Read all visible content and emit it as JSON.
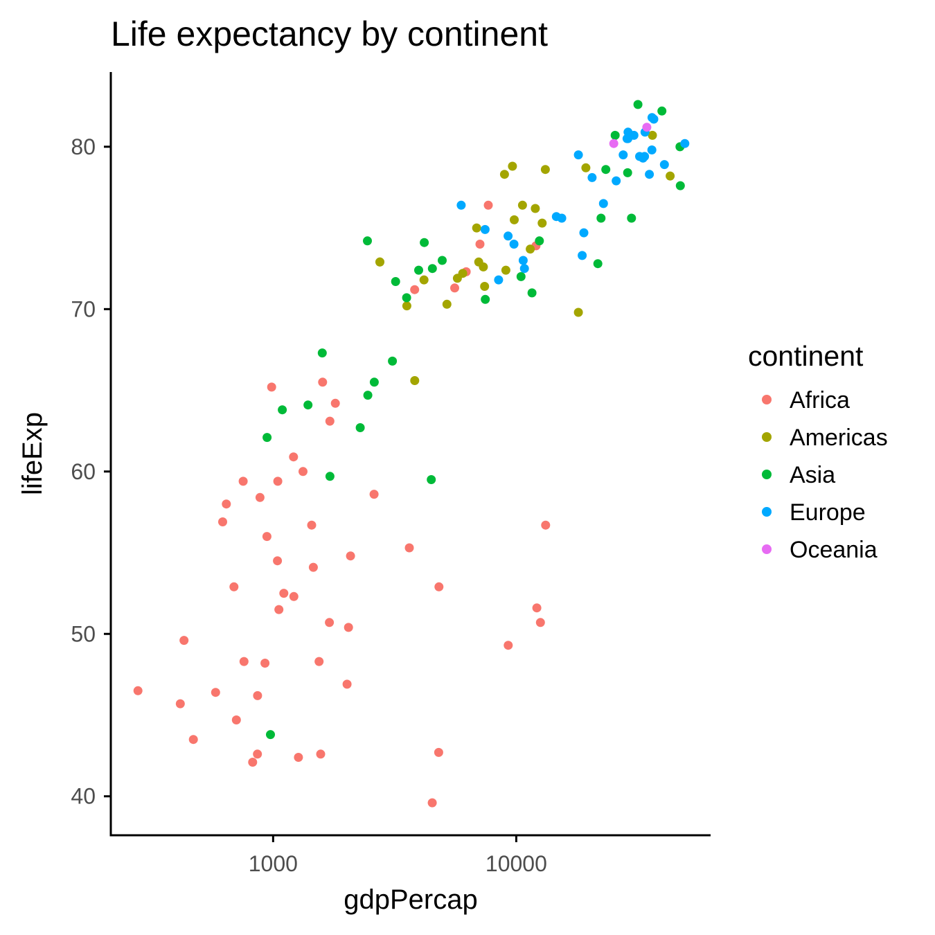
{
  "chart_data": {
    "type": "scatter",
    "title": "Life expectancy by continent",
    "xlabel": "gdpPercap",
    "ylabel": "lifeExp",
    "x_scale": "log10",
    "xlim": [
      215,
      63000
    ],
    "ylim": [
      37.6,
      84.6
    ],
    "x_ticks": [
      1000,
      10000
    ],
    "x_tick_labels": [
      "1000",
      "10000"
    ],
    "y_ticks": [
      40,
      50,
      60,
      70,
      80
    ],
    "y_tick_labels": [
      "40",
      "50",
      "60",
      "70",
      "80"
    ],
    "grid": false,
    "legend": {
      "title": "continent",
      "placement": "right"
    },
    "series": [
      {
        "name": "Africa",
        "color": "#F8766D",
        "points": [
          [
            6223,
            72.3
          ],
          [
            4797,
            42.7
          ],
          [
            1441,
            56.7
          ],
          [
            12570,
            50.7
          ],
          [
            1217,
            52.3
          ],
          [
            430,
            49.6
          ],
          [
            2042,
            50.4
          ],
          [
            706,
            44.7
          ],
          [
            1704,
            50.7
          ],
          [
            986,
            65.2
          ],
          [
            278,
            46.5
          ],
          [
            3633,
            55.3
          ],
          [
            1545,
            48.3
          ],
          [
            2082,
            54.8
          ],
          [
            5581,
            71.3
          ],
          [
            12154,
            51.6
          ],
          [
            642,
            58.0
          ],
          [
            690,
            52.9
          ],
          [
            13206,
            56.7
          ],
          [
            753,
            59.4
          ],
          [
            1327,
            60.0
          ],
          [
            943,
            56.0
          ],
          [
            580,
            46.4
          ],
          [
            1463,
            54.1
          ],
          [
            1569,
            42.6
          ],
          [
            415,
            45.7
          ],
          [
            12057,
            73.9
          ],
          [
            1045,
            59.4
          ],
          [
            759,
            48.3
          ],
          [
            1042,
            54.5
          ],
          [
            1803,
            64.2
          ],
          [
            7093,
            74.0
          ],
          [
            3820,
            71.2
          ],
          [
            824,
            42.1
          ],
          [
            4811,
            52.9
          ],
          [
            620,
            56.9
          ],
          [
            2014,
            46.9
          ],
          [
            7671,
            76.4
          ],
          [
            863,
            46.2
          ],
          [
            1598,
            65.5
          ],
          [
            1712,
            63.1
          ],
          [
            862,
            42.6
          ],
          [
            926,
            48.2
          ],
          [
            9270,
            49.3
          ],
          [
            2602,
            58.6
          ],
          [
            4513,
            39.6
          ],
          [
            1107,
            52.5
          ],
          [
            883,
            58.4
          ],
          [
            1056,
            51.5
          ],
          [
            1271,
            42.4
          ],
          [
            470,
            43.5
          ],
          [
            1213,
            60.9
          ]
        ]
      },
      {
        "name": "Americas",
        "color": "#A3A500",
        "points": [
          [
            12779,
            75.3
          ],
          [
            3822,
            65.6
          ],
          [
            9066,
            72.4
          ],
          [
            36319,
            80.7
          ],
          [
            13172,
            78.6
          ],
          [
            7007,
            72.9
          ],
          [
            9645,
            78.8
          ],
          [
            8948,
            78.3
          ],
          [
            6025,
            72.2
          ],
          [
            6873,
            75.0
          ],
          [
            5728,
            71.9
          ],
          [
            5186,
            70.3
          ],
          [
            2749,
            72.9
          ],
          [
            3548,
            70.2
          ],
          [
            7321,
            72.6
          ],
          [
            11978,
            76.2
          ],
          [
            2749,
            72.9
          ],
          [
            9809,
            75.5
          ],
          [
            4173,
            71.8
          ],
          [
            7409,
            71.4
          ],
          [
            19329,
            78.7
          ],
          [
            18009,
            69.8
          ],
          [
            42952,
            78.2
          ],
          [
            10611,
            76.4
          ],
          [
            11416,
            73.7
          ]
        ]
      },
      {
        "name": "Asia",
        "color": "#00BA38",
        "points": [
          [
            975,
            43.8
          ],
          [
            29796,
            75.6
          ],
          [
            1391,
            64.1
          ],
          [
            1713,
            59.7
          ],
          [
            4959,
            73.0
          ],
          [
            39725,
            82.2
          ],
          [
            2452,
            64.7
          ],
          [
            3541,
            70.7
          ],
          [
            11606,
            71.0
          ],
          [
            4471,
            59.5
          ],
          [
            25523,
            80.7
          ],
          [
            31656,
            82.6
          ],
          [
            4519,
            72.5
          ],
          [
            1593,
            67.3
          ],
          [
            23348,
            78.6
          ],
          [
            47307,
            77.6
          ],
          [
            10461,
            72.0
          ],
          [
            12452,
            74.2
          ],
          [
            3095,
            66.8
          ],
          [
            944,
            62.1
          ],
          [
            1091,
            63.8
          ],
          [
            22316,
            75.6
          ],
          [
            2606,
            65.5
          ],
          [
            3190,
            71.7
          ],
          [
            21655,
            72.8
          ],
          [
            47143,
            80.0
          ],
          [
            3970,
            72.4
          ],
          [
            4185,
            74.1
          ],
          [
            28718,
            78.4
          ],
          [
            7458,
            70.6
          ],
          [
            2442,
            74.2
          ],
          [
            2281,
            62.7
          ]
        ]
      },
      {
        "name": "Europe",
        "color": "#00A9FF",
        "points": [
          [
            5937,
            76.4
          ],
          [
            36126,
            79.8
          ],
          [
            33693,
            79.4
          ],
          [
            7446,
            74.9
          ],
          [
            10681,
            73.0
          ],
          [
            14619,
            75.7
          ],
          [
            22834,
            76.5
          ],
          [
            35278,
            78.3
          ],
          [
            33207,
            79.3
          ],
          [
            30470,
            80.7
          ],
          [
            32170,
            79.4
          ],
          [
            27538,
            79.5
          ],
          [
            18009,
            79.5
          ],
          [
            36181,
            81.8
          ],
          [
            40676,
            78.9
          ],
          [
            28570,
            80.5
          ],
          [
            9254,
            74.5
          ],
          [
            36798,
            81.7
          ],
          [
            49357,
            80.2
          ],
          [
            9786,
            74.0
          ],
          [
            10808,
            72.5
          ],
          [
            8458,
            71.8
          ],
          [
            20510,
            78.1
          ],
          [
            25768,
            77.9
          ],
          [
            18970,
            74.7
          ],
          [
            28821,
            80.9
          ],
          [
            15390,
            75.6
          ],
          [
            28797,
            80.5
          ],
          [
            18678,
            73.3
          ],
          [
            33860,
            80.9
          ]
        ]
      },
      {
        "name": "Oceania",
        "color": "#E76BF3",
        "points": [
          [
            34435,
            81.2
          ],
          [
            25185,
            80.2
          ]
        ]
      }
    ]
  }
}
